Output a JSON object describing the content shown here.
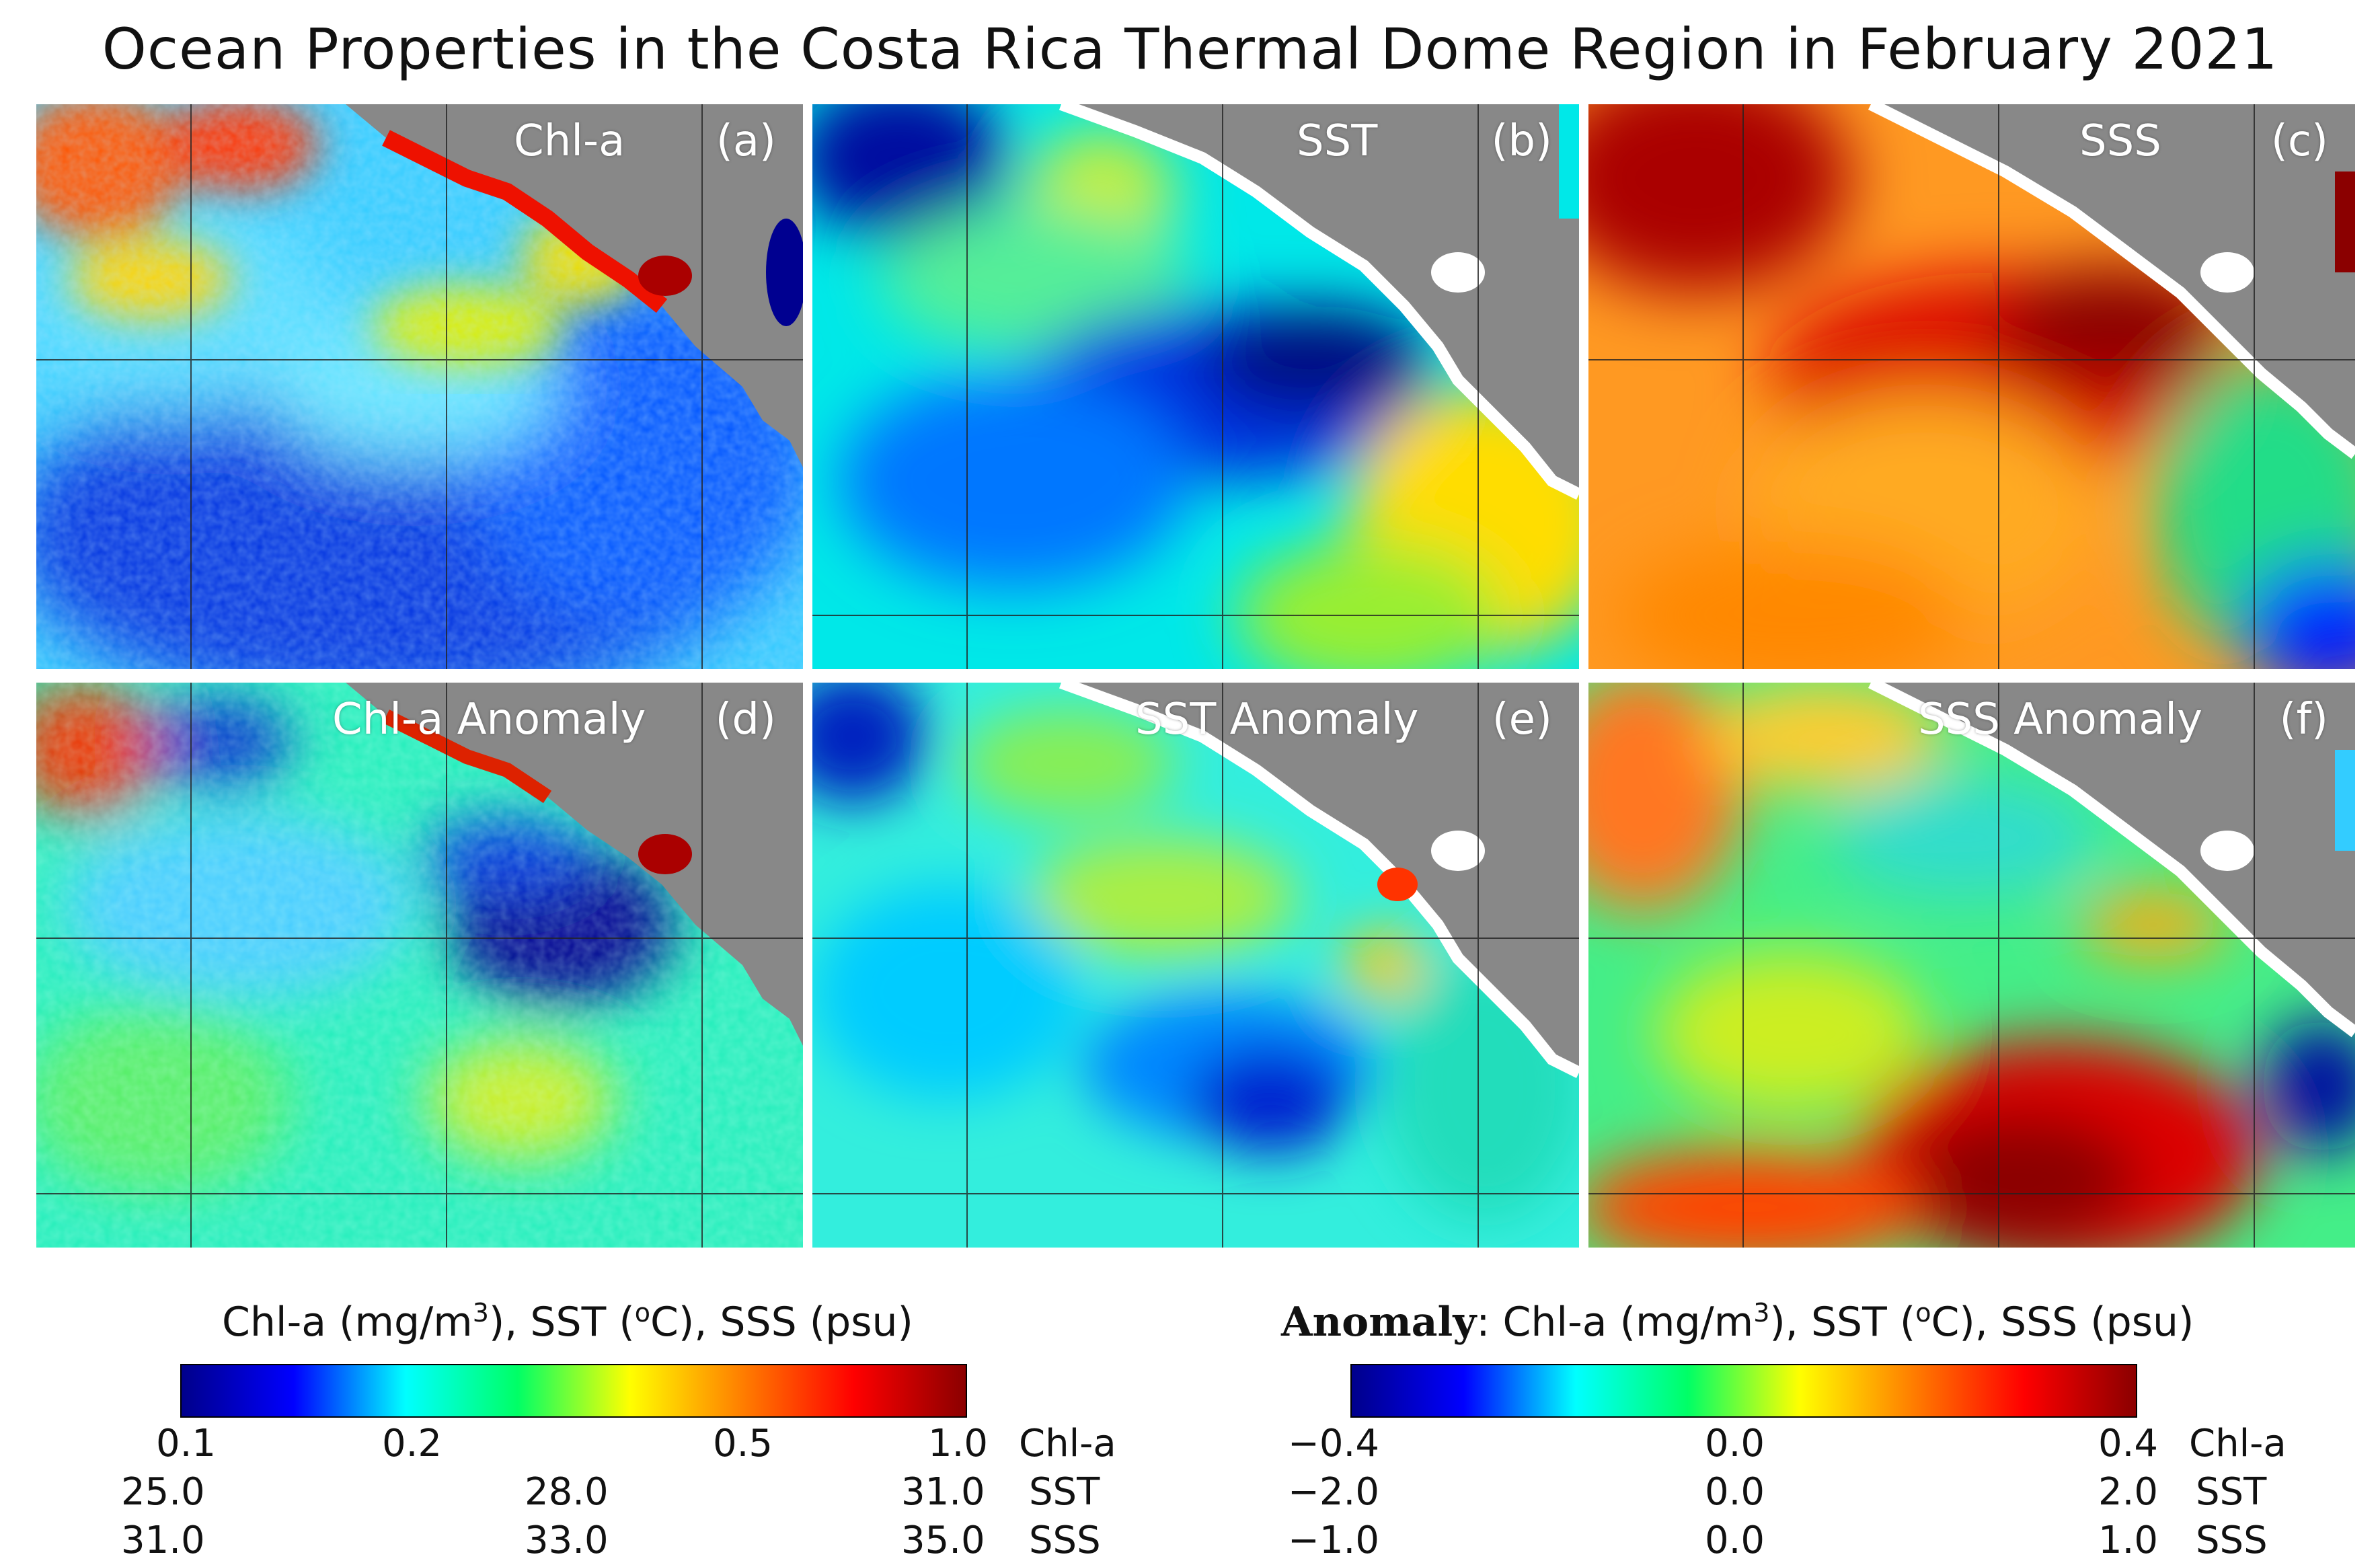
{
  "title": "Ocean Properties in the Costa Rica Thermal Dome Region in February 2021",
  "panels": [
    {
      "label": "Chl-a",
      "letter": "(a)"
    },
    {
      "label": "SST",
      "letter": "(b)"
    },
    {
      "label": "SSS",
      "letter": "(c)"
    },
    {
      "label": "Chl-a Anomaly",
      "letter": "(d)"
    },
    {
      "label": "SST Anomaly",
      "letter": "(e)"
    },
    {
      "label": "SSS Anomaly",
      "letter": "(f)"
    }
  ],
  "colorbars": {
    "absolute": {
      "title_pre": "Chl-a (mg/m",
      "title_sup": "3",
      "title_mid": "), SST (",
      "title_deg": "o",
      "title_post": "C), SSS (psu)",
      "colors": [
        "#00008b",
        "#0000ff",
        "#00ffff",
        "#00ff66",
        "#ffff00",
        "#ff7f00",
        "#ff0000",
        "#8b0000"
      ],
      "rows": [
        {
          "name": "Chl-a",
          "ticks": [
            "0.1",
            "0.2",
            "0.5",
            "1.0"
          ]
        },
        {
          "name": "SST",
          "ticks": [
            "25.0",
            "28.0",
            "31.0"
          ]
        },
        {
          "name": "SSS",
          "ticks": [
            "31.0",
            "33.0",
            "35.0"
          ]
        }
      ]
    },
    "anomaly": {
      "title_bold": "Anomaly",
      "title_pre": ": Chl-a (mg/m",
      "title_sup": "3",
      "title_mid": "), SST (",
      "title_deg": "o",
      "title_post": "C), SSS (psu)",
      "colors": [
        "#00008b",
        "#0000ff",
        "#00ffff",
        "#00ff66",
        "#ffff00",
        "#ff7f00",
        "#ff0000",
        "#8b0000"
      ],
      "rows": [
        {
          "name": "Chl-a",
          "ticks": [
            "−0.4",
            "0.0",
            "0.4"
          ]
        },
        {
          "name": "SST",
          "ticks": [
            "−2.0",
            "0.0",
            "2.0"
          ]
        },
        {
          "name": "SSS",
          "ticks": [
            "−1.0",
            "0.0",
            "1.0"
          ]
        }
      ]
    }
  },
  "land_color": "#888888"
}
